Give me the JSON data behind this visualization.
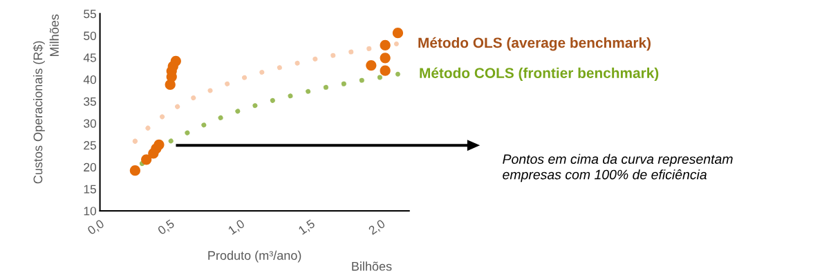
{
  "chart_data": {
    "type": "scatter",
    "xlabel": "Produto (m³/ano)",
    "ylabel": "Custos Operacionais (R$)",
    "xlim": [
      0,
      2.2
    ],
    "ylim": [
      10,
      55
    ],
    "xticks": [
      {
        "value": 0,
        "label": "0,0"
      },
      {
        "value": 0.5,
        "label": "0,5"
      },
      {
        "value": 1.0,
        "label": "1,0"
      },
      {
        "value": 1.5,
        "label": "1,5"
      },
      {
        "value": 2.0,
        "label": "2,0"
      }
    ],
    "yticks": [
      10,
      15,
      20,
      25,
      30,
      35,
      40,
      45,
      50,
      55
    ],
    "grid": false,
    "legend": false,
    "series": [
      {
        "type": "line",
        "line_style": "dotted",
        "name": "Método OLS (average benchmark)",
        "color": "#f8cbad",
        "x": [
          0.25,
          0.36,
          0.49,
          0.63,
          0.78,
          0.93,
          1.08,
          1.24,
          1.39,
          1.55,
          1.71,
          1.87,
          2.03,
          2.11
        ],
        "values": [
          25.9,
          29.5,
          32.6,
          35.3,
          37.4,
          39.3,
          41.0,
          42.4,
          43.6,
          44.8,
          45.8,
          46.8,
          47.6,
          48.1
        ]
      },
      {
        "type": "line",
        "line_style": "dotted",
        "name": "Método COLS (frontier benchmark)",
        "color": "#9bbb59",
        "x": [
          0.3,
          0.49,
          0.64,
          0.78,
          0.93,
          1.09,
          1.24,
          1.4,
          1.56,
          1.72,
          1.88,
          2.04,
          2.12
        ],
        "values": [
          20.8,
          25.7,
          28.1,
          30.2,
          32.2,
          33.9,
          35.3,
          36.6,
          37.9,
          38.9,
          39.9,
          40.7,
          41.2
        ]
      },
      {
        "marker": "circle",
        "color": "#e46c0a",
        "x": [
          0.25,
          0.33,
          0.38,
          0.4,
          0.42,
          0.5,
          0.51,
          0.51,
          0.52,
          0.54,
          1.93,
          2.03,
          2.03,
          2.03,
          2.12
        ],
        "values": [
          19.2,
          21.7,
          23.1,
          24.2,
          25.1,
          38.8,
          40.6,
          41.9,
          43.0,
          44.2,
          43.2,
          42.0,
          44.9,
          47.8,
          50.6
        ]
      }
    ],
    "annotations": [
      "Pontos em cima da curva representam\nempresas com 100% de eficiência",
      "Milhões",
      "Bilhões"
    ]
  }
}
